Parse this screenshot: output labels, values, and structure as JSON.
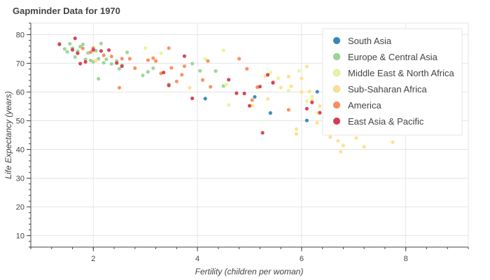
{
  "chart_data": {
    "type": "scatter",
    "title": "Gapminder Data for 1970",
    "xlabel": "Fertility (children per woman)",
    "ylabel": "Life Expectancy (years)",
    "xlim": [
      0.8,
      9.2
    ],
    "ylim": [
      6,
      84
    ],
    "x_ticks": [
      2,
      4,
      6,
      8
    ],
    "x_minor_step": 0.4,
    "y_ticks": [
      10,
      20,
      30,
      40,
      50,
      60,
      70,
      80
    ],
    "y_minor_step": 2,
    "grid": true,
    "legend_position": "top-right",
    "series": [
      {
        "name": "South Asia",
        "color": "#3288bd",
        "points": [
          [
            4.15,
            57.7
          ],
          [
            5.1,
            58.3
          ],
          [
            5.4,
            52.7
          ],
          [
            6.1,
            50.1
          ],
          [
            6.3,
            60.1
          ],
          [
            6.6,
            48.6
          ]
        ]
      },
      {
        "name": "Europe & Central Asia",
        "color": "#99d594",
        "points": [
          [
            1.35,
            76.5
          ],
          [
            1.45,
            75.0
          ],
          [
            1.5,
            74.0
          ],
          [
            1.55,
            76.8
          ],
          [
            1.6,
            75.3
          ],
          [
            1.65,
            72.2
          ],
          [
            1.7,
            74.2
          ],
          [
            1.75,
            75.8
          ],
          [
            1.8,
            76.6
          ],
          [
            1.85,
            71.4
          ],
          [
            1.9,
            73.6
          ],
          [
            1.95,
            71.0
          ],
          [
            2.0,
            70.5
          ],
          [
            2.05,
            74.4
          ],
          [
            2.1,
            71.6
          ],
          [
            2.15,
            76.9
          ],
          [
            2.2,
            70.2
          ],
          [
            2.25,
            71.4
          ],
          [
            2.35,
            69.8
          ],
          [
            2.45,
            70.8
          ],
          [
            2.5,
            68.1
          ],
          [
            2.55,
            69.3
          ],
          [
            2.65,
            73.8
          ],
          [
            2.95,
            65.8
          ],
          [
            3.05,
            67.0
          ],
          [
            3.15,
            68.3
          ],
          [
            3.45,
            62.7
          ],
          [
            3.9,
            69.9
          ],
          [
            4.05,
            67.4
          ],
          [
            4.35,
            67.3
          ],
          [
            4.5,
            62.1
          ],
          [
            2.1,
            64.6
          ]
        ]
      },
      {
        "name": "Middle East & North Africa",
        "color": "#e6f598",
        "points": [
          [
            3.0,
            75.3
          ],
          [
            3.3,
            73.5
          ],
          [
            4.15,
            71.5
          ],
          [
            4.5,
            74.5
          ],
          [
            4.55,
            62.5
          ],
          [
            4.6,
            55.5
          ],
          [
            5.4,
            66.8
          ],
          [
            5.55,
            64.8
          ],
          [
            5.75,
            60.5
          ],
          [
            5.95,
            67.4
          ],
          [
            6.1,
            56.8
          ],
          [
            6.2,
            58.5
          ],
          [
            6.3,
            52.7
          ],
          [
            6.5,
            54.3
          ]
        ]
      },
      {
        "name": "Sub-Saharan Africa",
        "color": "#fee08b",
        "points": [
          [
            2.05,
            70.9
          ],
          [
            3.85,
            61.5
          ],
          [
            5.05,
            55.3
          ],
          [
            5.35,
            57.6
          ],
          [
            5.6,
            61.6
          ],
          [
            5.75,
            65.4
          ],
          [
            5.9,
            47.1
          ],
          [
            5.9,
            45.4
          ],
          [
            6.0,
            64.7
          ],
          [
            6.1,
            68.9
          ],
          [
            6.15,
            60.2
          ],
          [
            6.2,
            57.2
          ],
          [
            6.3,
            49.3
          ],
          [
            6.35,
            55.1
          ],
          [
            6.45,
            45.8
          ],
          [
            6.55,
            44.3
          ],
          [
            6.6,
            46.5
          ],
          [
            6.7,
            43.0
          ],
          [
            6.75,
            39.2
          ],
          [
            6.8,
            41.4
          ],
          [
            6.9,
            50.5
          ],
          [
            7.05,
            44.0
          ],
          [
            7.2,
            40.9
          ],
          [
            7.4,
            49.0
          ],
          [
            7.75,
            42.5
          ],
          [
            5.3,
            65.5
          ],
          [
            5.8,
            62.0
          ],
          [
            6.0,
            60.0
          ]
        ]
      },
      {
        "name": "America",
        "color": "#fc8d59",
        "points": [
          [
            1.8,
            75.2
          ],
          [
            1.95,
            73.9
          ],
          [
            2.0,
            75.3
          ],
          [
            2.2,
            72.8
          ],
          [
            2.35,
            72.4
          ],
          [
            2.5,
            61.5
          ],
          [
            2.55,
            71.6
          ],
          [
            2.7,
            71.6
          ],
          [
            2.8,
            68.3
          ],
          [
            3.05,
            71.1
          ],
          [
            3.15,
            71.8
          ],
          [
            3.2,
            70.8
          ],
          [
            3.45,
            75.3
          ],
          [
            3.5,
            68.4
          ],
          [
            3.6,
            63.7
          ],
          [
            3.7,
            66.0
          ],
          [
            3.75,
            69.0
          ],
          [
            4.2,
            70.8
          ],
          [
            4.25,
            61.8
          ],
          [
            4.8,
            71.6
          ],
          [
            4.95,
            68.1
          ],
          [
            5.05,
            57.2
          ],
          [
            5.15,
            61.7
          ],
          [
            5.45,
            63.4
          ],
          [
            5.75,
            53.8
          ],
          [
            3.3,
            66.5
          ],
          [
            4.1,
            64.2
          ]
        ]
      },
      {
        "name": "East Asia & Pacific",
        "color": "#d53e4f",
        "points": [
          [
            1.35,
            76.7
          ],
          [
            1.6,
            74.7
          ],
          [
            1.65,
            78.7
          ],
          [
            1.7,
            73.5
          ],
          [
            1.75,
            69.9
          ],
          [
            1.85,
            70.5
          ],
          [
            2.0,
            74.7
          ],
          [
            2.15,
            74.3
          ],
          [
            2.3,
            74.6
          ],
          [
            2.45,
            70.1
          ],
          [
            2.55,
            69.0
          ],
          [
            3.35,
            66.8
          ],
          [
            3.45,
            62.3
          ],
          [
            3.75,
            72.5
          ],
          [
            3.9,
            57.8
          ],
          [
            4.75,
            59.6
          ],
          [
            4.9,
            59.5
          ],
          [
            5.0,
            55.2
          ],
          [
            5.2,
            61.9
          ],
          [
            5.25,
            45.8
          ],
          [
            5.35,
            66.0
          ],
          [
            5.45,
            63.2
          ],
          [
            6.1,
            54.2
          ],
          [
            6.2,
            56.4
          ],
          [
            6.35,
            52.8
          ],
          [
            4.6,
            64.3
          ]
        ]
      }
    ]
  }
}
